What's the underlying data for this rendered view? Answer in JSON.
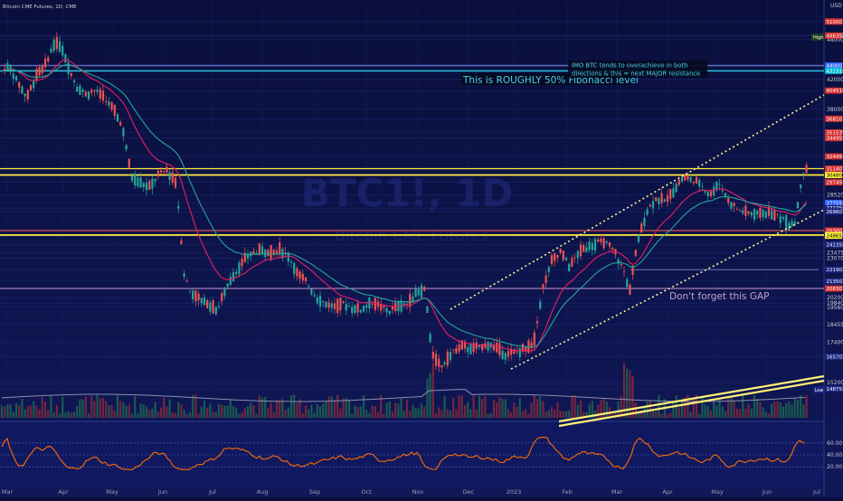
{
  "chart_data": {
    "type": "candlestick",
    "instrument": "Bitcoin CME Futures, 1D, CME",
    "watermark_symbol": "BTC1!, 1D",
    "watermark_name": "Bitcoin CME Futures",
    "currency": "USD",
    "x_labels": [
      "Mar",
      "Apr",
      "May",
      "Jun",
      "Jul",
      "Aug",
      "Sep",
      "Oct",
      "Nov",
      "Dec",
      "2023",
      "Feb",
      "Mar",
      "Apr",
      "May",
      "Jun",
      "Jul"
    ],
    "y_range": [
      13500,
      54000
    ],
    "y_ticks": [
      "14875",
      "15200",
      "16570",
      "17400",
      "18455",
      "19560",
      "19840",
      "20200",
      "20830",
      "21350",
      "22190",
      "23070",
      "23475",
      "24135",
      "24865",
      "24925",
      "25300",
      "26960",
      "27275",
      "27755",
      "28520",
      "29745",
      "30480",
      "31140",
      "32445",
      "34495",
      "35153",
      "36810",
      "38000",
      "40451",
      "42000",
      "43231",
      "44000",
      "48000",
      "48635",
      "48675",
      "51000"
    ],
    "price_labels": [
      {
        "text": "51000",
        "value": 51000,
        "color": "#d32f2f"
      },
      {
        "text": "48675",
        "value": 48675,
        "color": "#1a3d1a"
      },
      {
        "text": "48635",
        "value": 48635,
        "color": "#d32f2f"
      },
      {
        "text": "44000",
        "value": 44000,
        "color": "#2962ff"
      },
      {
        "text": "43231",
        "value": 43231,
        "color": "#00bcd4"
      },
      {
        "text": "40451",
        "value": 40451,
        "color": "#d32f2f"
      },
      {
        "text": "36810",
        "value": 36810,
        "color": "#d32f2f"
      },
      {
        "text": "35153",
        "value": 35153,
        "color": "#d32f2f"
      },
      {
        "text": "34495",
        "value": 34495,
        "color": "#d32f2f"
      },
      {
        "text": "32445",
        "value": 32445,
        "color": "#d32f2f"
      },
      {
        "text": "31140",
        "value": 31140,
        "color": "#d32f2f"
      },
      {
        "text": "30480",
        "value": 30480,
        "color": "#ffeb3b"
      },
      {
        "text": "29745",
        "value": 29745,
        "color": "#d32f2f"
      },
      {
        "text": "27755",
        "value": 27755,
        "color": "#2962ff"
      },
      {
        "text": "27275",
        "value": 27275,
        "color": "#1a237e"
      },
      {
        "text": "26960",
        "value": 26960,
        "color": "#1a237e"
      },
      {
        "text": "25300",
        "value": 25300,
        "color": "#d32f2f"
      },
      {
        "text": "24925",
        "value": 24925,
        "color": "#ffeb3b"
      },
      {
        "text": "24865",
        "value": 24865,
        "color": "#ffeb3b"
      },
      {
        "text": "24135",
        "value": 24135,
        "color": "#1a237e"
      },
      {
        "text": "22190",
        "value": 22190,
        "color": "#1a237e"
      },
      {
        "text": "21350",
        "value": 21350,
        "color": "#1a237e"
      },
      {
        "text": "20830",
        "value": 20830,
        "color": "#d32f2f"
      },
      {
        "text": "16570",
        "value": 16570,
        "color": "#1a237e"
      },
      {
        "text": "14875",
        "value": 14875,
        "color": "#1a237e"
      }
    ],
    "badges": {
      "high": "High",
      "low": "Low"
    },
    "horizontal_levels": [
      {
        "value": 44000,
        "color": "#5c6bc0",
        "width": 1.5
      },
      {
        "value": 43231,
        "color": "#26c6da",
        "width": 1.5
      },
      {
        "value": 31140,
        "color": "#ffeb3b",
        "width": 1.2
      },
      {
        "value": 30480,
        "color": "#ffeb3b",
        "width": 1.8
      },
      {
        "value": 25300,
        "color": "#ef5350",
        "width": 1.2
      },
      {
        "value": 24925,
        "color": "#ffeb3b",
        "width": 1.8
      },
      {
        "value": 20830,
        "color": "#ce93d8",
        "width": 1
      }
    ],
    "annotations": {
      "fib_note": "This is ROUGHLY 50% Fibonacci level",
      "overshoot_line1": "IMO BTC tends to overachieve in both",
      "overshoot_line2": "directions & this = next MAJOR resistance",
      "gap_note": "Don't forget this GAP"
    },
    "rsi": {
      "levels": [
        70,
        50,
        30
      ],
      "labels": [
        "60.00",
        "40.00",
        "20.00"
      ]
    },
    "colors": {
      "up": "#26a69a",
      "down": "#ef5350",
      "ema_fast": "#e91e63",
      "ema_slow": "#26a69a",
      "rsi": "#ff6d00",
      "background": "#0a0f3c"
    }
  }
}
